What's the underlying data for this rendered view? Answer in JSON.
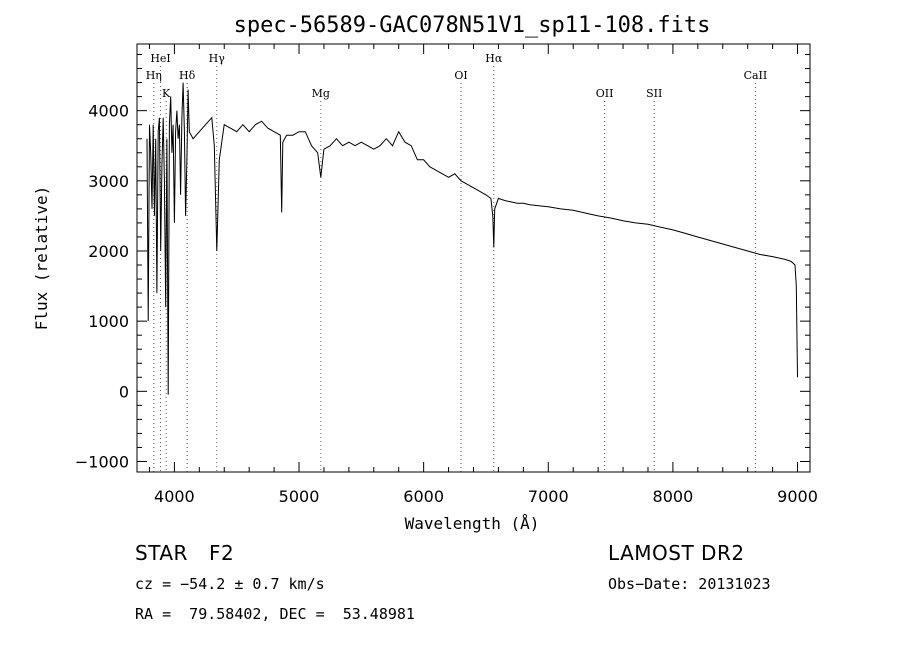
{
  "chart_data": {
    "type": "line",
    "title": "spec-56589-GAC078N51V1_sp11-108.fits",
    "xlabel": "Wavelength (Å)",
    "ylabel": "Flux (relative)",
    "xlim": [
      3700,
      9100
    ],
    "ylim": [
      -1150,
      4950
    ],
    "xticks": [
      4000,
      5000,
      6000,
      7000,
      8000,
      9000
    ],
    "yticks": [
      -1000,
      0,
      1000,
      2000,
      3000,
      4000
    ],
    "grid": false,
    "line_color": "#000000",
    "series": [
      {
        "x": [
          3780,
          3790,
          3800,
          3810,
          3820,
          3830,
          3840,
          3850,
          3860,
          3870,
          3880,
          3890,
          3900,
          3910,
          3920,
          3930,
          3940,
          3950,
          3960,
          3970,
          3980,
          3990,
          4000,
          4010,
          4020,
          4030,
          4040,
          4050,
          4060,
          4070,
          4080,
          4090,
          4100,
          4110,
          4120,
          4150,
          4200,
          4250,
          4300,
          4320,
          4340,
          4360,
          4400,
          4450,
          4500,
          4550,
          4600,
          4650,
          4700,
          4750,
          4800,
          4850,
          4861,
          4870,
          4900,
          4950,
          5000,
          5050,
          5100,
          5150,
          5175,
          5200,
          5250,
          5300,
          5350,
          5400,
          5450,
          5500,
          5550,
          5600,
          5650,
          5700,
          5750,
          5800,
          5850,
          5900,
          5950,
          6000,
          6050,
          6100,
          6150,
          6200,
          6250,
          6300,
          6350,
          6400,
          6450,
          6500,
          6540,
          6555,
          6563,
          6570,
          6600,
          6650,
          6700,
          6750,
          6800,
          6850,
          6900,
          6950,
          7000,
          7100,
          7200,
          7300,
          7400,
          7500,
          7600,
          7700,
          7800,
          7900,
          8000,
          8100,
          8200,
          8300,
          8400,
          8500,
          8600,
          8700,
          8800,
          8900,
          8950,
          8980,
          8990,
          9000
        ],
        "y": [
          3600,
          1000,
          3800,
          3400,
          2600,
          3800,
          2500,
          3600,
          1400,
          3700,
          3900,
          2000,
          3200,
          3900,
          3000,
          1200,
          3600,
          -50,
          3800,
          4200,
          3400,
          3800,
          2400,
          3700,
          4000,
          3600,
          3800,
          2800,
          3900,
          4400,
          3700,
          2500,
          3300,
          4300,
          3700,
          3600,
          3700,
          3800,
          3900,
          3500,
          2000,
          3300,
          3800,
          3750,
          3700,
          3800,
          3700,
          3800,
          3850,
          3750,
          3700,
          3650,
          2550,
          3550,
          3650,
          3650,
          3700,
          3700,
          3500,
          3400,
          3050,
          3450,
          3500,
          3600,
          3500,
          3550,
          3500,
          3550,
          3500,
          3450,
          3500,
          3600,
          3500,
          3700,
          3550,
          3500,
          3300,
          3300,
          3200,
          3150,
          3100,
          3050,
          3100,
          3000,
          2950,
          2900,
          2850,
          2800,
          2750,
          2500,
          2050,
          2600,
          2750,
          2720,
          2700,
          2680,
          2680,
          2660,
          2650,
          2640,
          2630,
          2600,
          2580,
          2540,
          2500,
          2470,
          2430,
          2400,
          2380,
          2340,
          2300,
          2250,
          2200,
          2150,
          2100,
          2050,
          2000,
          1950,
          1920,
          1880,
          1850,
          1800,
          1500,
          200
        ]
      }
    ],
    "line_markers": [
      {
        "label": "HeI",
        "x": 3889,
        "level": 1
      },
      {
        "label": "Hη",
        "x": 3835,
        "level": 2
      },
      {
        "label": "K",
        "x": 3934,
        "level": 3
      },
      {
        "label": "Hδ",
        "x": 4102,
        "level": 2
      },
      {
        "label": "Hγ",
        "x": 4340,
        "level": 1
      },
      {
        "label": "Mg",
        "x": 5175,
        "level": 3
      },
      {
        "label": "OI",
        "x": 6300,
        "level": 2
      },
      {
        "label": "Hα",
        "x": 6563,
        "level": 1
      },
      {
        "label": "OII",
        "x": 7452,
        "level": 3
      },
      {
        "label": "SII",
        "x": 7850,
        "level": 3
      },
      {
        "label": "CaII",
        "x": 8662,
        "level": 2
      }
    ]
  },
  "info": {
    "object_class": "STAR",
    "subclass": "F2",
    "survey": "LAMOST DR2",
    "redshift": "cz = −54.2 ± 0.7 km/s",
    "obs_date": "Obs−Date: 20131023",
    "coords": "RA =  79.58402, DEC =  53.48981"
  }
}
